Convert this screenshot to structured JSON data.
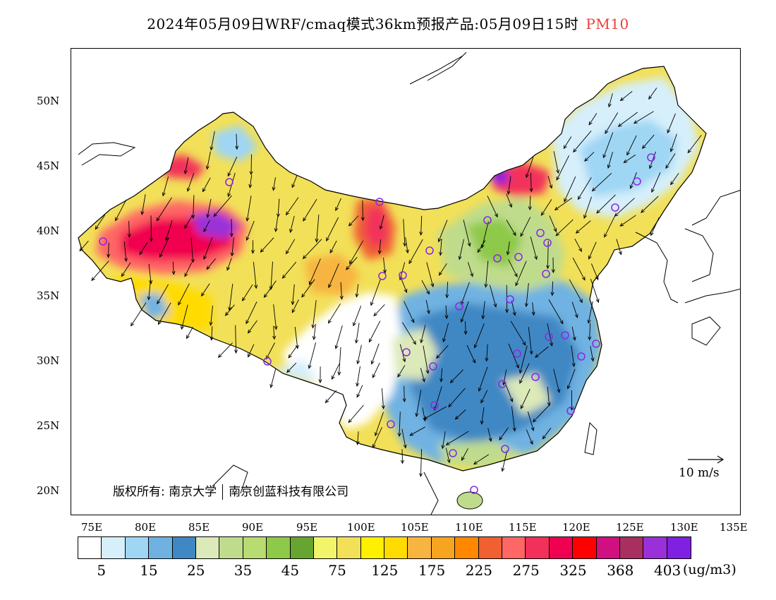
{
  "title": {
    "text": "2024年05月09日WRF/cmaq模式36km预报产品:05月09日15时",
    "pollutant": "PM10",
    "pollutant_color": "#e8403a"
  },
  "axes": {
    "lon_ticks": [
      "75E",
      "80E",
      "85E",
      "90E",
      "95E",
      "100E",
      "105E",
      "110E",
      "115E",
      "120E",
      "125E",
      "130E",
      "135E"
    ],
    "lat_ticks": [
      "50N",
      "45N",
      "40N",
      "35N",
      "30N",
      "25N",
      "20N"
    ]
  },
  "colorbar": {
    "colors": [
      "#ffffff",
      "#d6effb",
      "#9fd6f4",
      "#6fb2e2",
      "#3f88c4",
      "#dce9b8",
      "#bfdc8c",
      "#b8db72",
      "#8ec94a",
      "#67a530",
      "#f2f56a",
      "#f2e058",
      "#fff000",
      "#ffdb00",
      "#f8b440",
      "#f7a520",
      "#ff8800",
      "#f06030",
      "#ff6666",
      "#f2305a",
      "#f00050",
      "#ff0000",
      "#d01080",
      "#a83060",
      "#9a30d8",
      "#8020e0"
    ],
    "labels": [
      "5",
      "15",
      "25",
      "35",
      "45",
      "75",
      "125",
      "175",
      "225",
      "275",
      "325",
      "368",
      "403"
    ],
    "unit": "(ug/m3)"
  },
  "copyright": {
    "prefix": "版权所有:",
    "org1": "南京大学",
    "org2": "南京创蓝科技有限公司"
  },
  "wind_reference": {
    "label": "10 m/s"
  },
  "stations_marker_color": "#8a2be2"
}
